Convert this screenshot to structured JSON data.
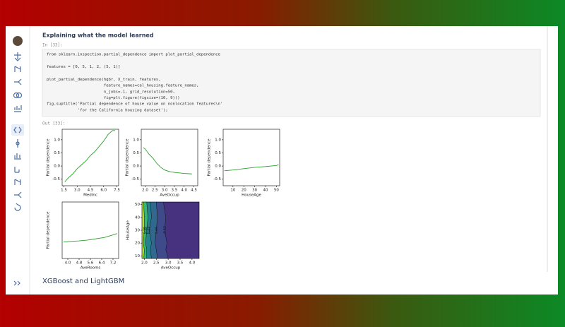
{
  "notebook": {
    "heading": "Explaining what the model learned",
    "input_prompt": "In [33]:",
    "code_blocks": [
      [
        "from sklearn.inspection.partial_dependence import plot_partial_dependence"
      ],
      [
        "features = [0, 5, 1, 2, (5, 1)]"
      ],
      [
        "plot_partial_dependence(hgbr, X_train, features,",
        "                        feature_names=cal_housing.feature_names,",
        "                        n_jobs=-1, grid_resolution=50,",
        "                        fig=plt.figure(figsize=(10, 9)))",
        "fig.suptitle('Partial dependence of house value on nonlocation features\\n'",
        "             'for the California housing dataset');"
      ]
    ],
    "output_prompt": "Out [33]:",
    "next_heading": "XGBoost and LightGBM"
  },
  "chart_data": [
    {
      "type": "line",
      "xlabel": "MedInc",
      "ylabel": "Partial dependence",
      "color": "#2ca02c",
      "xlim": [
        1.3,
        7.7
      ],
      "ylim": [
        -0.75,
        1.4
      ],
      "xticks": [
        1.5,
        {
          "value": 3,
          "label": "3.0"
        },
        4.5,
        {
          "value": 6,
          "label": "6.0"
        },
        7.5
      ],
      "yticks": [
        -0.5,
        {
          "value": 0,
          "label": "0.0"
        },
        0.5,
        {
          "value": 1,
          "label": "1.0"
        }
      ],
      "x": [
        1.6,
        2,
        2.5,
        3,
        3.5,
        4,
        4.5,
        5,
        5.5,
        6,
        6.5,
        7,
        7.3
      ],
      "values": [
        -0.6,
        -0.45,
        -0.3,
        -0.1,
        0.05,
        0.2,
        0.4,
        0.55,
        0.75,
        0.95,
        1.2,
        1.35,
        1.35
      ]
    },
    {
      "type": "line",
      "xlabel": "AveOccup",
      "ylabel": "Partial dependence",
      "color": "#2ca02c",
      "xlim": [
        1.8,
        4.7
      ],
      "ylim": [
        -0.75,
        1.4
      ],
      "xticks": [
        {
          "value": 2,
          "label": "2.0"
        },
        2.5,
        {
          "value": 3,
          "label": "3.0"
        },
        3.5,
        {
          "value": 4,
          "label": "4.0"
        },
        4.5
      ],
      "yticks": [
        -0.5,
        {
          "value": 0,
          "label": "0.0"
        },
        0.5,
        {
          "value": 1,
          "label": "1.0"
        }
      ],
      "x": [
        1.9,
        2.0,
        2.2,
        2.4,
        2.6,
        2.8,
        3.0,
        3.3,
        3.6,
        4.0,
        4.4
      ],
      "values": [
        0.7,
        0.65,
        0.45,
        0.3,
        0.1,
        -0.05,
        -0.15,
        -0.22,
        -0.25,
        -0.28,
        -0.3
      ]
    },
    {
      "type": "line",
      "xlabel": "HouseAge",
      "ylabel": "Partial dependence",
      "color": "#2ca02c",
      "xlim": [
        1,
        53
      ],
      "ylim": [
        -0.75,
        1.4
      ],
      "xticks": [
        10,
        20,
        30,
        40,
        50
      ],
      "yticks": [
        -0.5,
        {
          "value": 0,
          "label": "0.0"
        },
        0.5,
        {
          "value": 1,
          "label": "1.0"
        }
      ],
      "x": [
        2,
        10,
        20,
        30,
        40,
        50,
        52
      ],
      "values": [
        -0.18,
        -0.15,
        -0.1,
        -0.05,
        -0.02,
        0.02,
        0.05
      ]
    },
    {
      "type": "line",
      "xlabel": "AveRooms",
      "ylabel": "Partial dependence",
      "color": "#2ca02c",
      "xlim": [
        3.6,
        7.6
      ],
      "ylim": [
        -0.75,
        1.4
      ],
      "xticks": [
        {
          "value": 4,
          "label": "4.0"
        },
        4.8,
        5.6,
        6.4,
        7.2
      ],
      "yticks": [],
      "x": [
        3.7,
        4.2,
        4.8,
        5.4,
        6.0,
        6.6,
        7.2,
        7.5
      ],
      "values": [
        -0.12,
        -0.1,
        -0.08,
        -0.05,
        0,
        0.05,
        0.15,
        0.2
      ]
    },
    {
      "type": "contour",
      "xlabel": "AveOccup",
      "ylabel": "HouseAge",
      "xlim": [
        1.9,
        4.3
      ],
      "ylim": [
        8,
        52
      ],
      "background": "#46327e",
      "xticks": [
        {
          "value": 2,
          "label": "2.0"
        },
        2.5,
        {
          "value": 3,
          "label": "3.0"
        },
        3.5,
        {
          "value": 4,
          "label": "4.0"
        }
      ],
      "yticks": [
        10,
        20,
        30,
        40,
        50
      ],
      "levels": [
        {
          "level": -0.12,
          "color": "#3e4a89",
          "x": [
            3.0,
            2.9,
            2.95,
            2.85,
            2.9,
            2.8
          ],
          "y": [
            8,
            15,
            20,
            30,
            40,
            52
          ]
        },
        {
          "level": 0.05,
          "color": "#31688e",
          "x": [
            2.55,
            2.5,
            2.45,
            2.5,
            2.55,
            2.5
          ],
          "y": [
            8,
            15,
            20,
            30,
            40,
            52
          ]
        },
        {
          "level": 0.22,
          "color": "#26828e",
          "x": [
            2.3,
            2.25,
            2.3,
            2.2,
            2.3,
            2.25
          ],
          "y": [
            8,
            15,
            20,
            30,
            40,
            52
          ]
        },
        {
          "level": 0.39,
          "color": "#35b779",
          "x": [
            2.1,
            2.1,
            2.05,
            2.1,
            2.15,
            2.1
          ],
          "y": [
            8,
            15,
            20,
            30,
            40,
            52
          ]
        },
        {
          "level": 0.56,
          "color": "#b5de2b",
          "x": [
            1.98,
            2.0,
            1.95,
            2.0,
            2.0,
            1.97
          ],
          "y": [
            8,
            15,
            20,
            30,
            40,
            52
          ]
        }
      ]
    }
  ]
}
